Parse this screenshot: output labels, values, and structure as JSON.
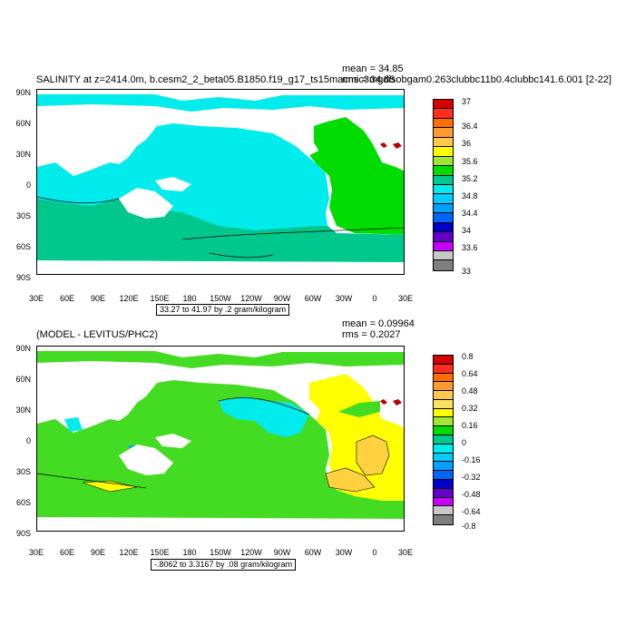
{
  "panel1": {
    "title": "SALINITY at z=2414.0m, b.cesm2_2_beta05.B1850.f19_g17_ts15macmic3mgdisobgam0.263clubbc11b0.4clubbc141.6.001 [2-22]",
    "mean": "mean = 34.85",
    "rms": "rms = 34.85",
    "range": "33.27 to 41.97 by .2 gram/kilogram",
    "legend_labels": [
      "37",
      "36.4",
      "36",
      "35.6",
      "35.2",
      "34.8",
      "34.4",
      "34",
      "33.6",
      "33"
    ],
    "legend_colors": [
      "#d40000",
      "#ff2e1e",
      "#ff6e00",
      "#ff9a32",
      "#ffc84b",
      "#ffff00",
      "#a0e632",
      "#00dc00",
      "#00c88c",
      "#00ebeb",
      "#00cdff",
      "#00a0ff",
      "#0064ff",
      "#0000c8",
      "#6400c8",
      "#c800ff",
      "#c8c8c8",
      "#7f7f7f"
    ],
    "region_colors": {
      "ocean_main": "#00ebeb",
      "atlantic": "#00dc00",
      "southern": "#00c88c",
      "med": "#b40000"
    }
  },
  "panel2": {
    "title": "(MODEL - LEVITUS/PHC2)",
    "mean": "mean = 0.09964",
    "rms": "rms = 0.2027",
    "range": "-.8062 to 3.3167 by .08 gram/kilogram",
    "legend_labels": [
      "0.8",
      "0.64",
      "0.48",
      "0.32",
      "0.16",
      "0",
      "-0.16",
      "-0.32",
      "-0.48",
      "-0.64",
      "-0.8"
    ],
    "legend_colors": [
      "#d40000",
      "#ff2e1e",
      "#ff6e00",
      "#ff9a32",
      "#ffc84b",
      "#ffe060",
      "#ffff00",
      "#a0e632",
      "#00dc00",
      "#00c88c",
      "#00ebeb",
      "#00cdff",
      "#00a0ff",
      "#0064ff",
      "#0000c8",
      "#6400c8",
      "#c800ff",
      "#c8c8c8",
      "#7f7f7f"
    ],
    "region_colors": {
      "ocean_main": "#44dc22",
      "atlantic": "#ffff00",
      "pacific_n": "#00ebeb",
      "orange": "#ffd040",
      "med": "#b40000"
    }
  },
  "axes": {
    "lat_labels": [
      "90N",
      "60N",
      "30N",
      "0",
      "30S",
      "60S",
      "90S"
    ],
    "lon_labels": [
      "30E",
      "60E",
      "90E",
      "120E",
      "150E",
      "180",
      "150W",
      "120W",
      "90W",
      "60W",
      "30W",
      "0",
      "30E"
    ]
  }
}
